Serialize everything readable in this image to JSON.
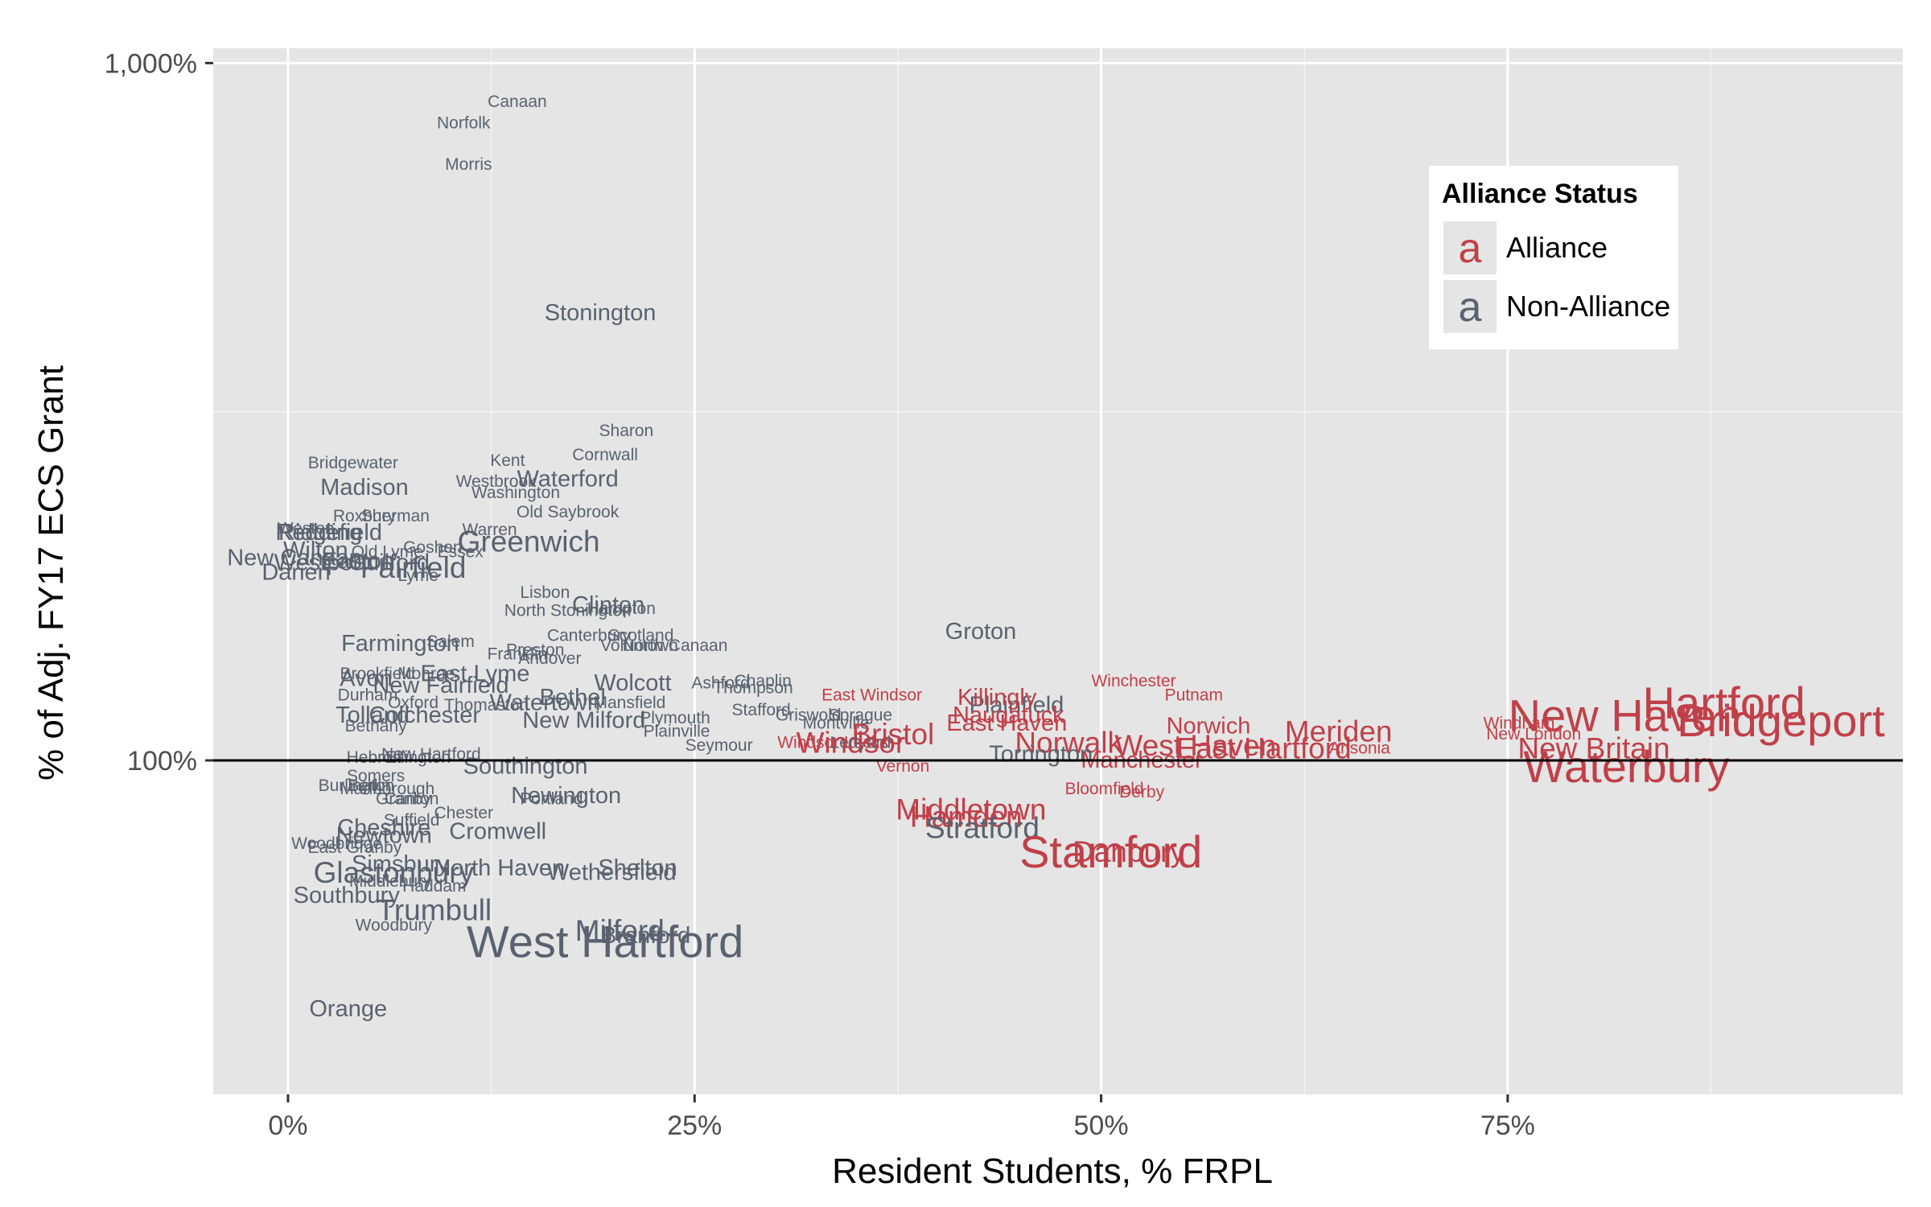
{
  "chart_data": {
    "type": "scatter",
    "title": "",
    "xlabel": "Resident Students, % FRPL",
    "ylabel": "% of Adj. FY17 ECS Grant",
    "x_unit": "percent",
    "y_scale": "log",
    "xlim": [
      -4.6,
      99.3
    ],
    "ylim": [
      33.2,
      1050
    ],
    "x_ticks": [
      0,
      25,
      50,
      75
    ],
    "x_tick_labels": [
      "0%",
      "25%",
      "50%",
      "75%"
    ],
    "y_ticks": [
      100,
      1000
    ],
    "y_tick_labels": [
      "100%",
      "1,000%"
    ],
    "reference_line_y": 100,
    "grid": true,
    "point_marker": "town name as text, size scaled by town size",
    "colors": {
      "Alliance": "#c0404a",
      "Non-Alliance": "#5a6270"
    },
    "legend": {
      "title": "Alliance Status",
      "position": "top-right inside plot",
      "items": [
        {
          "key_glyph": "a",
          "label": "Alliance",
          "group": "Alliance"
        },
        {
          "key_glyph": "a",
          "label": "Non-Alliance",
          "group": "Non-Alliance"
        }
      ]
    },
    "points": [
      {
        "name": "Canaan",
        "x": 14.1,
        "y": 880,
        "group": "Non-Alliance",
        "size": "s"
      },
      {
        "name": "Norfolk",
        "x": 10.8,
        "y": 820,
        "group": "Non-Alliance",
        "size": "s"
      },
      {
        "name": "Morris",
        "x": 11.1,
        "y": 715,
        "group": "Non-Alliance",
        "size": "s"
      },
      {
        "name": "Stonington",
        "x": 19.2,
        "y": 438,
        "group": "Non-Alliance",
        "size": "m"
      },
      {
        "name": "Sharon",
        "x": 20.8,
        "y": 297,
        "group": "Non-Alliance",
        "size": "s"
      },
      {
        "name": "Cornwall",
        "x": 19.5,
        "y": 274,
        "group": "Non-Alliance",
        "size": "s"
      },
      {
        "name": "Kent",
        "x": 13.5,
        "y": 269,
        "group": "Non-Alliance",
        "size": "s"
      },
      {
        "name": "Waterford",
        "x": 17.2,
        "y": 253,
        "group": "Non-Alliance",
        "size": "m"
      },
      {
        "name": "Westbrook",
        "x": 12.8,
        "y": 251,
        "group": "Non-Alliance",
        "size": "s"
      },
      {
        "name": "Washington",
        "x": 14.0,
        "y": 242,
        "group": "Non-Alliance",
        "size": "s"
      },
      {
        "name": "Bridgewater",
        "x": 4.0,
        "y": 267,
        "group": "Non-Alliance",
        "size": "s"
      },
      {
        "name": "Madison",
        "x": 4.7,
        "y": 246,
        "group": "Non-Alliance",
        "size": "m"
      },
      {
        "name": "Old Saybrook",
        "x": 17.2,
        "y": 227,
        "group": "Non-Alliance",
        "size": "s"
      },
      {
        "name": "Roxbury",
        "x": 4.7,
        "y": 224,
        "group": "Non-Alliance",
        "size": "s"
      },
      {
        "name": "Sherman",
        "x": 6.6,
        "y": 224,
        "group": "Non-Alliance",
        "size": "s"
      },
      {
        "name": "Weston",
        "x": 1.1,
        "y": 215,
        "group": "Non-Alliance",
        "size": "s"
      },
      {
        "name": "Redding",
        "x": 1.9,
        "y": 212,
        "group": "Non-Alliance",
        "size": "m"
      },
      {
        "name": "Ridgefield",
        "x": 2.6,
        "y": 212,
        "group": "Non-Alliance",
        "size": "m"
      },
      {
        "name": "Warren",
        "x": 12.4,
        "y": 214,
        "group": "Non-Alliance",
        "size": "s"
      },
      {
        "name": "Greenwich",
        "x": 14.8,
        "y": 206,
        "group": "Non-Alliance",
        "size": "l"
      },
      {
        "name": "Wilton",
        "x": 1.7,
        "y": 200,
        "group": "Non-Alliance",
        "size": "m"
      },
      {
        "name": "Goshen",
        "x": 8.9,
        "y": 202,
        "group": "Non-Alliance",
        "size": "s"
      },
      {
        "name": "Old Lyme",
        "x": 6.1,
        "y": 199,
        "group": "Non-Alliance",
        "size": "s"
      },
      {
        "name": "Essex",
        "x": 10.6,
        "y": 199,
        "group": "Non-Alliance",
        "size": "s"
      },
      {
        "name": "New Canaan",
        "x": 0.4,
        "y": 195,
        "group": "Non-Alliance",
        "size": "m"
      },
      {
        "name": "Westport",
        "x": 2.0,
        "y": 192,
        "group": "Non-Alliance",
        "size": "m"
      },
      {
        "name": "Guilford",
        "x": 6.2,
        "y": 192,
        "group": "Non-Alliance",
        "size": "m"
      },
      {
        "name": "Easton",
        "x": 4.3,
        "y": 193,
        "group": "Non-Alliance",
        "size": "m"
      },
      {
        "name": "Fairfield",
        "x": 7.7,
        "y": 189,
        "group": "Non-Alliance",
        "size": "l"
      },
      {
        "name": "Darien",
        "x": 0.5,
        "y": 186,
        "group": "Non-Alliance",
        "size": "m"
      },
      {
        "name": "Lyme",
        "x": 8.0,
        "y": 184,
        "group": "Non-Alliance",
        "size": "s"
      },
      {
        "name": "Lisbon",
        "x": 15.8,
        "y": 174,
        "group": "Non-Alliance",
        "size": "s"
      },
      {
        "name": "Clinton",
        "x": 19.7,
        "y": 167,
        "group": "Non-Alliance",
        "size": "m"
      },
      {
        "name": "Hampton",
        "x": 20.5,
        "y": 165,
        "group": "Non-Alliance",
        "size": "s"
      },
      {
        "name": "North Stonington",
        "x": 17.2,
        "y": 164,
        "group": "Non-Alliance",
        "size": "s"
      },
      {
        "name": "Groton",
        "x": 42.6,
        "y": 153,
        "group": "Non-Alliance",
        "size": "m"
      },
      {
        "name": "Canterbury",
        "x": 18.5,
        "y": 151,
        "group": "Non-Alliance",
        "size": "s"
      },
      {
        "name": "Scotland",
        "x": 21.7,
        "y": 151,
        "group": "Non-Alliance",
        "size": "s"
      },
      {
        "name": "Voluntown",
        "x": 21.6,
        "y": 146,
        "group": "Non-Alliance",
        "size": "s"
      },
      {
        "name": "North Canaan",
        "x": 23.8,
        "y": 146,
        "group": "Non-Alliance",
        "size": "s"
      },
      {
        "name": "Farmington",
        "x": 6.9,
        "y": 147,
        "group": "Non-Alliance",
        "size": "m"
      },
      {
        "name": "Salem",
        "x": 10.0,
        "y": 148,
        "group": "Non-Alliance",
        "size": "s"
      },
      {
        "name": "Preston",
        "x": 15.2,
        "y": 144,
        "group": "Non-Alliance",
        "size": "s"
      },
      {
        "name": "Franklin",
        "x": 14.1,
        "y": 142,
        "group": "Non-Alliance",
        "size": "s"
      },
      {
        "name": "Andover",
        "x": 16.1,
        "y": 140,
        "group": "Non-Alliance",
        "size": "s"
      },
      {
        "name": "Winchester",
        "x": 52.0,
        "y": 130,
        "group": "Alliance",
        "size": "s"
      },
      {
        "name": "Chaplin",
        "x": 29.2,
        "y": 130,
        "group": "Non-Alliance",
        "size": "s"
      },
      {
        "name": "Ashford",
        "x": 26.6,
        "y": 129,
        "group": "Non-Alliance",
        "size": "s"
      },
      {
        "name": "Thompson",
        "x": 28.6,
        "y": 127,
        "group": "Non-Alliance",
        "size": "s"
      },
      {
        "name": "Wolcott",
        "x": 21.2,
        "y": 129,
        "group": "Non-Alliance",
        "size": "m"
      },
      {
        "name": "Avon",
        "x": 4.8,
        "y": 131,
        "group": "Non-Alliance",
        "size": "m"
      },
      {
        "name": "Brookfield",
        "x": 5.5,
        "y": 133,
        "group": "Non-Alliance",
        "size": "s"
      },
      {
        "name": "East Lyme",
        "x": 11.5,
        "y": 133,
        "group": "Non-Alliance",
        "size": "m"
      },
      {
        "name": "Monroe",
        "x": 8.5,
        "y": 133,
        "group": "Non-Alliance",
        "size": "s"
      },
      {
        "name": "New Fairfield",
        "x": 9.4,
        "y": 128,
        "group": "Non-Alliance",
        "size": "m"
      },
      {
        "name": "Durham",
        "x": 4.9,
        "y": 124,
        "group": "Non-Alliance",
        "size": "s"
      },
      {
        "name": "Oxford",
        "x": 7.7,
        "y": 121,
        "group": "Non-Alliance",
        "size": "s"
      },
      {
        "name": "Bethel",
        "x": 17.5,
        "y": 123,
        "group": "Non-Alliance",
        "size": "m"
      },
      {
        "name": "Watertown",
        "x": 15.8,
        "y": 121,
        "group": "Non-Alliance",
        "size": "m"
      },
      {
        "name": "Mansfield",
        "x": 21.0,
        "y": 121,
        "group": "Non-Alliance",
        "size": "s"
      },
      {
        "name": "Plainfield",
        "x": 44.8,
        "y": 120,
        "group": "Non-Alliance",
        "size": "m"
      },
      {
        "name": "Killingly",
        "x": 43.6,
        "y": 123,
        "group": "Alliance",
        "size": "m"
      },
      {
        "name": "East Windsor",
        "x": 35.9,
        "y": 124,
        "group": "Alliance",
        "size": "s"
      },
      {
        "name": "Putnam",
        "x": 55.7,
        "y": 124,
        "group": "Alliance",
        "size": "s"
      },
      {
        "name": "Stafford",
        "x": 29.1,
        "y": 118,
        "group": "Non-Alliance",
        "size": "s"
      },
      {
        "name": "Griswold",
        "x": 32.0,
        "y": 116,
        "group": "Non-Alliance",
        "size": "s"
      },
      {
        "name": "Sprague",
        "x": 35.2,
        "y": 116,
        "group": "Non-Alliance",
        "size": "s"
      },
      {
        "name": "Naugatuck",
        "x": 44.3,
        "y": 116,
        "group": "Alliance",
        "size": "m"
      },
      {
        "name": "East Haven",
        "x": 44.2,
        "y": 113,
        "group": "Alliance",
        "size": "m"
      },
      {
        "name": "Tolland",
        "x": 5.2,
        "y": 116,
        "group": "Non-Alliance",
        "size": "m"
      },
      {
        "name": "Colchester",
        "x": 8.4,
        "y": 116,
        "group": "Non-Alliance",
        "size": "m"
      },
      {
        "name": "New Milford",
        "x": 18.2,
        "y": 114,
        "group": "Non-Alliance",
        "size": "m"
      },
      {
        "name": "Plymouth",
        "x": 23.8,
        "y": 115,
        "group": "Non-Alliance",
        "size": "s"
      },
      {
        "name": "Montville",
        "x": 33.7,
        "y": 113,
        "group": "Non-Alliance",
        "size": "s"
      },
      {
        "name": "Bethany",
        "x": 5.4,
        "y": 112,
        "group": "Non-Alliance",
        "size": "s"
      },
      {
        "name": "Plainville",
        "x": 23.9,
        "y": 110,
        "group": "Non-Alliance",
        "size": "s"
      },
      {
        "name": "Seymour",
        "x": 26.5,
        "y": 105,
        "group": "Non-Alliance",
        "size": "s"
      },
      {
        "name": "Bristol",
        "x": 37.2,
        "y": 109,
        "group": "Alliance",
        "size": "l"
      },
      {
        "name": "Windsor",
        "x": 34.6,
        "y": 106,
        "group": "Alliance",
        "size": "l"
      },
      {
        "name": "Ledyard",
        "x": 35.2,
        "y": 106,
        "group": "Non-Alliance",
        "size": "s"
      },
      {
        "name": "Windsor Locks",
        "x": 33.5,
        "y": 106,
        "group": "Alliance",
        "size": "s"
      },
      {
        "name": "Vernon",
        "x": 37.8,
        "y": 98,
        "group": "Alliance",
        "size": "s"
      },
      {
        "name": "Norwalk",
        "x": 48.0,
        "y": 106,
        "group": "Alliance",
        "size": "l"
      },
      {
        "name": "Torrington",
        "x": 46.3,
        "y": 102,
        "group": "Non-Alliance",
        "size": "m"
      },
      {
        "name": "West Haven",
        "x": 55.8,
        "y": 105,
        "group": "Alliance",
        "size": "l"
      },
      {
        "name": "East Hartford",
        "x": 60.0,
        "y": 104,
        "group": "Alliance",
        "size": "l"
      },
      {
        "name": "Norwich",
        "x": 56.6,
        "y": 112,
        "group": "Alliance",
        "size": "m"
      },
      {
        "name": "Manchester",
        "x": 52.5,
        "y": 100,
        "group": "Alliance",
        "size": "m"
      },
      {
        "name": "Meriden",
        "x": 64.6,
        "y": 110,
        "group": "Alliance",
        "size": "l"
      },
      {
        "name": "Ansonia",
        "x": 65.9,
        "y": 104,
        "group": "Alliance",
        "size": "s"
      },
      {
        "name": "Bloomfield",
        "x": 50.2,
        "y": 91,
        "group": "Alliance",
        "size": "s"
      },
      {
        "name": "Derby",
        "x": 52.5,
        "y": 90,
        "group": "Alliance",
        "size": "s"
      },
      {
        "name": "Windham",
        "x": 75.7,
        "y": 113,
        "group": "Alliance",
        "size": "s"
      },
      {
        "name": "New London",
        "x": 76.6,
        "y": 109,
        "group": "Alliance",
        "size": "s"
      },
      {
        "name": "New Haven",
        "x": 82.2,
        "y": 116,
        "group": "Alliance",
        "size": "xl"
      },
      {
        "name": "Hartford",
        "x": 88.3,
        "y": 121,
        "group": "Alliance",
        "size": "xl"
      },
      {
        "name": "Bridgeport",
        "x": 91.8,
        "y": 114,
        "group": "Alliance",
        "size": "xl"
      },
      {
        "name": "New Britain",
        "x": 80.3,
        "y": 104,
        "group": "Alliance",
        "size": "l"
      },
      {
        "name": "Waterbury",
        "x": 82.3,
        "y": 98,
        "group": "Alliance",
        "size": "xl"
      },
      {
        "name": "Thomaston",
        "x": 12.2,
        "y": 120,
        "group": "Non-Alliance",
        "size": "s"
      },
      {
        "name": "Hebron",
        "x": 5.3,
        "y": 101,
        "group": "Non-Alliance",
        "size": "s"
      },
      {
        "name": "Ellington",
        "x": 8.0,
        "y": 101,
        "group": "Non-Alliance",
        "size": "s"
      },
      {
        "name": "New Hartford",
        "x": 8.8,
        "y": 102,
        "group": "Non-Alliance",
        "size": "s"
      },
      {
        "name": "Southington",
        "x": 14.6,
        "y": 98,
        "group": "Non-Alliance",
        "size": "m"
      },
      {
        "name": "Berlin",
        "x": 5.0,
        "y": 92,
        "group": "Non-Alliance",
        "size": "s"
      },
      {
        "name": "Burlington",
        "x": 4.2,
        "y": 92,
        "group": "Non-Alliance",
        "size": "s"
      },
      {
        "name": "Somers",
        "x": 5.4,
        "y": 95,
        "group": "Non-Alliance",
        "size": "s"
      },
      {
        "name": "Marlborough",
        "x": 6.1,
        "y": 91,
        "group": "Non-Alliance",
        "size": "s"
      },
      {
        "name": "Granby",
        "x": 7.1,
        "y": 88,
        "group": "Non-Alliance",
        "size": "s"
      },
      {
        "name": "Canton",
        "x": 7.6,
        "y": 88,
        "group": "Non-Alliance",
        "size": "s"
      },
      {
        "name": "Newington",
        "x": 17.1,
        "y": 89,
        "group": "Non-Alliance",
        "size": "m"
      },
      {
        "name": "Portland",
        "x": 16.2,
        "y": 88,
        "group": "Non-Alliance",
        "size": "s"
      },
      {
        "name": "Middletown",
        "x": 42.0,
        "y": 85,
        "group": "Alliance",
        "size": "l"
      },
      {
        "name": "Hamden",
        "x": 41.7,
        "y": 83,
        "group": "Alliance",
        "size": "l"
      },
      {
        "name": "Stratford",
        "x": 42.7,
        "y": 80,
        "group": "Non-Alliance",
        "size": "l"
      },
      {
        "name": "Chester",
        "x": 10.8,
        "y": 84,
        "group": "Non-Alliance",
        "size": "s"
      },
      {
        "name": "Suffield",
        "x": 7.6,
        "y": 82,
        "group": "Non-Alliance",
        "size": "s"
      },
      {
        "name": "Cheshire",
        "x": 5.9,
        "y": 80,
        "group": "Non-Alliance",
        "size": "m"
      },
      {
        "name": "Cromwell",
        "x": 12.9,
        "y": 79,
        "group": "Non-Alliance",
        "size": "m"
      },
      {
        "name": "Newtown",
        "x": 5.9,
        "y": 78,
        "group": "Non-Alliance",
        "size": "m"
      },
      {
        "name": "Woodbridge",
        "x": 3.0,
        "y": 76,
        "group": "Non-Alliance",
        "size": "s"
      },
      {
        "name": "East Granby",
        "x": 4.1,
        "y": 75,
        "group": "Non-Alliance",
        "size": "s"
      },
      {
        "name": "Stamford",
        "x": 50.6,
        "y": 74,
        "group": "Alliance",
        "size": "xl"
      },
      {
        "name": "Danbury",
        "x": 51.7,
        "y": 74,
        "group": "Alliance",
        "size": "l"
      },
      {
        "name": "Simsbury",
        "x": 6.9,
        "y": 71,
        "group": "Non-Alliance",
        "size": "m"
      },
      {
        "name": "North Haven",
        "x": 13.0,
        "y": 70,
        "group": "Non-Alliance",
        "size": "m"
      },
      {
        "name": "Shelton",
        "x": 21.5,
        "y": 70,
        "group": "Non-Alliance",
        "size": "m"
      },
      {
        "name": "Glastonbury",
        "x": 6.5,
        "y": 69,
        "group": "Non-Alliance",
        "size": "l"
      },
      {
        "name": "Wethersfield",
        "x": 19.9,
        "y": 69,
        "group": "Non-Alliance",
        "size": "m"
      },
      {
        "name": "Middlebury",
        "x": 6.3,
        "y": 67,
        "group": "Non-Alliance",
        "size": "s"
      },
      {
        "name": "Haddam",
        "x": 9.0,
        "y": 66,
        "group": "Non-Alliance",
        "size": "s"
      },
      {
        "name": "Southbury",
        "x": 3.6,
        "y": 64,
        "group": "Non-Alliance",
        "size": "m"
      },
      {
        "name": "Trumbull",
        "x": 9.0,
        "y": 61,
        "group": "Non-Alliance",
        "size": "l"
      },
      {
        "name": "Woodbury",
        "x": 6.5,
        "y": 58,
        "group": "Non-Alliance",
        "size": "s"
      },
      {
        "name": "Milford",
        "x": 20.4,
        "y": 57,
        "group": "Non-Alliance",
        "size": "l"
      },
      {
        "name": "Branford",
        "x": 22.0,
        "y": 56,
        "group": "Non-Alliance",
        "size": "m"
      },
      {
        "name": "West Hartford",
        "x": 19.5,
        "y": 55,
        "group": "Non-Alliance",
        "size": "xl"
      },
      {
        "name": "Orange",
        "x": 3.7,
        "y": 44,
        "group": "Non-Alliance",
        "size": "m"
      }
    ]
  }
}
